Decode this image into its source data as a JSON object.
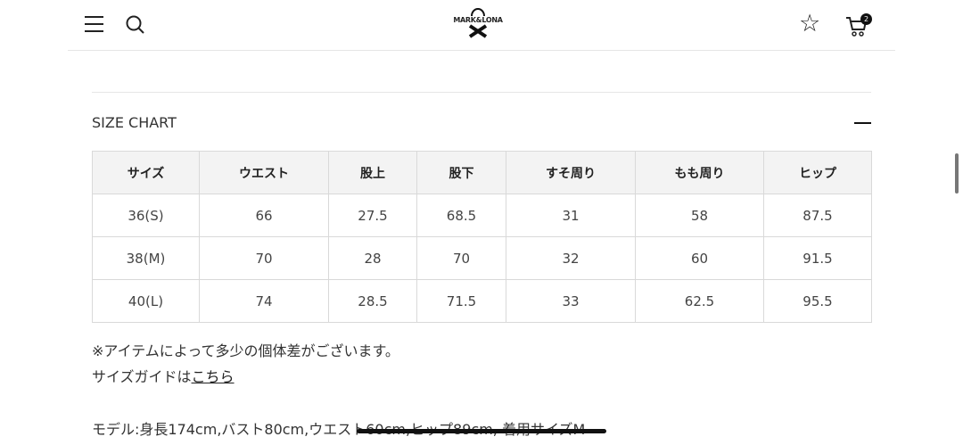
{
  "header": {
    "brand": "MARK&LONA",
    "cart_count": "2"
  },
  "size_chart": {
    "title": "SIZE CHART",
    "columns": [
      "サイズ",
      "ウエスト",
      "股上",
      "股下",
      "すそ周り",
      "もも周り",
      "ヒップ"
    ],
    "rows": [
      [
        "36(S)",
        "66",
        "27.5",
        "68.5",
        "31",
        "58",
        "87.5"
      ],
      [
        "38(M)",
        "70",
        "28",
        "70",
        "32",
        "60",
        "91.5"
      ],
      [
        "40(L)",
        "74",
        "28.5",
        "71.5",
        "33",
        "62.5",
        "95.5"
      ]
    ]
  },
  "notes": {
    "variance": "※アイテムによって多少の個体差がございます。",
    "guide_prefix": "サイズガイドは",
    "guide_link": "こちら",
    "model": "モデル:身長174cm,バスト80cm,ウエスト60cm,ヒップ89cm, 着用サイズM"
  }
}
